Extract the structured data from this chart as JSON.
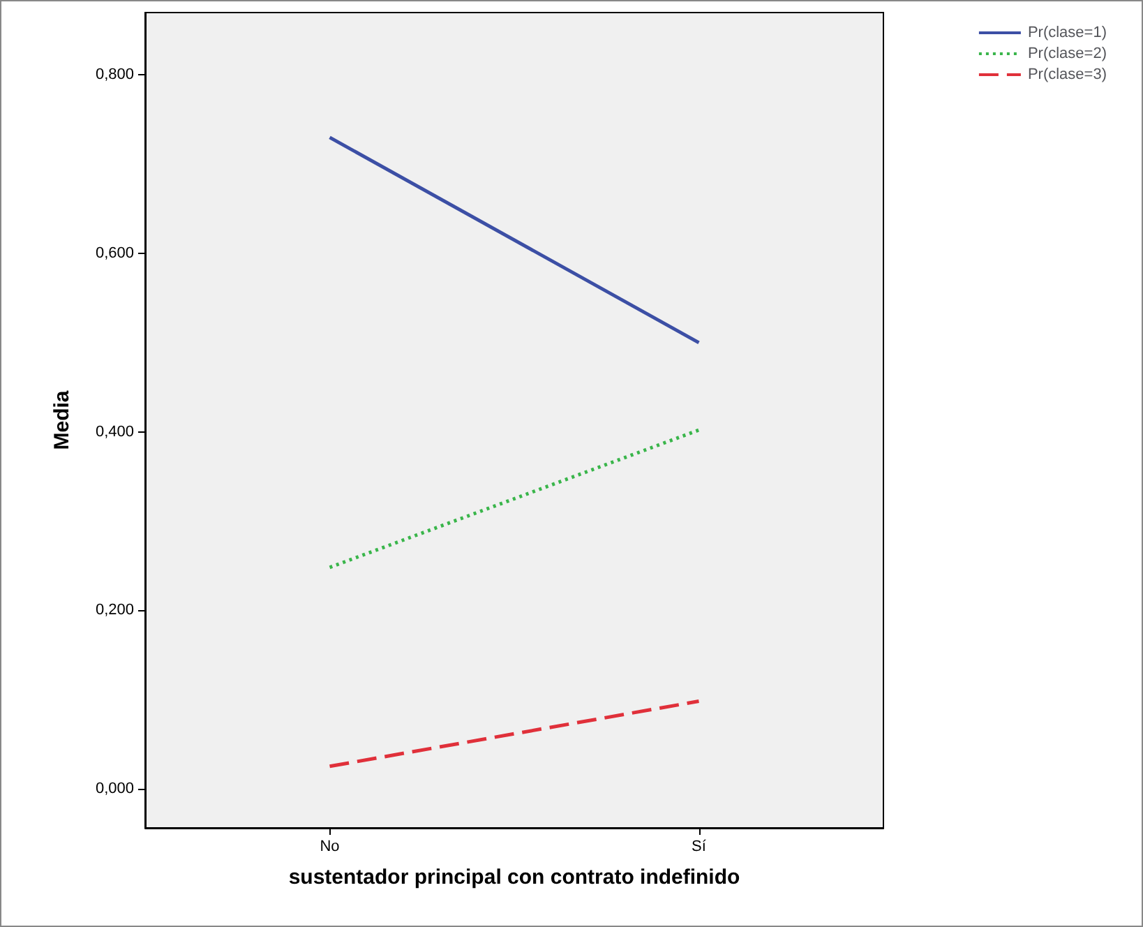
{
  "chart_data": {
    "type": "line",
    "xlabel": "sustentador principal con contrato indefinido",
    "ylabel": "Media",
    "categories": [
      "No",
      "Sí"
    ],
    "series": [
      {
        "name": "Pr(clase=1)",
        "color": "#3c4fa5",
        "line_style": "solid",
        "values": [
          0.73,
          0.5
        ]
      },
      {
        "name": "Pr(clase=2)",
        "color": "#39b54a",
        "line_style": "dotted",
        "values": [
          0.248,
          0.402
        ]
      },
      {
        "name": "Pr(clase=3)",
        "color": "#e0303a",
        "line_style": "dashed",
        "values": [
          0.025,
          0.098
        ]
      }
    ],
    "ylim": [
      -0.044,
      0.87
    ],
    "yticks": [
      {
        "value": 0,
        "label": "0,000"
      },
      {
        "value": 0.2,
        "label": "0,200"
      },
      {
        "value": 0.4,
        "label": "0,400"
      },
      {
        "value": 0.6,
        "label": "0,600"
      },
      {
        "value": 0.8,
        "label": "0,800"
      }
    ],
    "grid": false,
    "legend": "top right",
    "marker": "none"
  }
}
